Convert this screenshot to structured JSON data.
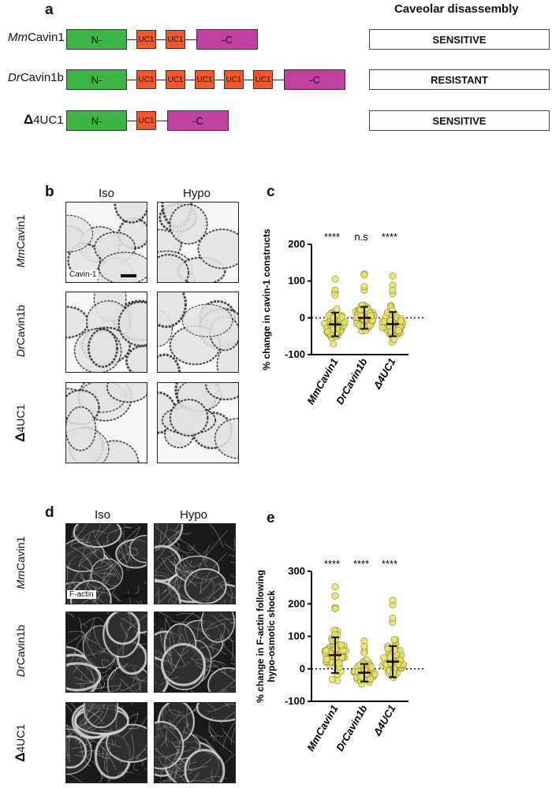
{
  "panel_a": {
    "letter": "a",
    "header": "Caveolar disassembly",
    "rows": [
      {
        "prefix": "Mm",
        "name": "Cavin1",
        "n": "N-",
        "uc": [
          "UC1",
          "UC1"
        ],
        "c": "-C",
        "status": "SENSITIVE"
      },
      {
        "prefix": "Dr",
        "name": "Cavin1b",
        "n": "N-",
        "uc": [
          "UC1",
          "UC1",
          "UC1",
          "UC1",
          "UC1"
        ],
        "c": "-C",
        "status": "RESISTANT"
      },
      {
        "prefix": "Δ",
        "name": "4UC1",
        "n": "N-",
        "uc": [
          "UC1"
        ],
        "c": "-C",
        "status": "SENSITIVE"
      }
    ]
  },
  "panel_b": {
    "letter": "b",
    "col_iso": "Iso",
    "col_hypo": "Hypo",
    "scale_label": "Cavin-1",
    "rows": [
      {
        "prefix": "Mm",
        "name": "Cavin1"
      },
      {
        "prefix": "Dr",
        "name": "Cavin1b"
      },
      {
        "prefix": "Δ",
        "name": "4UC1"
      }
    ]
  },
  "panel_d": {
    "letter": "d",
    "col_iso": "Iso",
    "col_hypo": "Hypo",
    "scale_label": "F-actin",
    "rows": [
      {
        "prefix": "Mm",
        "name": "Cavin1"
      },
      {
        "prefix": "Dr",
        "name": "Cavin1b"
      },
      {
        "prefix": "Δ",
        "name": "4UC1"
      }
    ]
  },
  "chart_data": [
    {
      "panel": "c",
      "type": "scatter",
      "ylabel": "% change in cavin-1 constructs",
      "ylim": [
        -100,
        200
      ],
      "yticks": [
        -100,
        0,
        100,
        200
      ],
      "categories": [
        "MmCavin1",
        "DrCavin1b",
        "Δ4UC1"
      ],
      "significance": [
        "****",
        "n.s",
        "****"
      ],
      "mean": [
        -18,
        0,
        -17
      ],
      "sd": [
        32,
        30,
        33
      ],
      "point_color": "#e6e070",
      "reference_line": 0
    },
    {
      "panel": "e",
      "type": "scatter",
      "ylabel": "% change in F-actin following hypo-osmotic shock",
      "ylim": [
        -100,
        300
      ],
      "yticks": [
        -100,
        0,
        100,
        200,
        300
      ],
      "categories": [
        "MmCavin1",
        "DrCavin1b",
        "Δ4UC1"
      ],
      "significance": [
        "****",
        "****",
        "****"
      ],
      "mean": [
        42,
        -12,
        22
      ],
      "sd": [
        55,
        27,
        48
      ],
      "point_color": "#e6e070",
      "reference_line": 0
    }
  ]
}
